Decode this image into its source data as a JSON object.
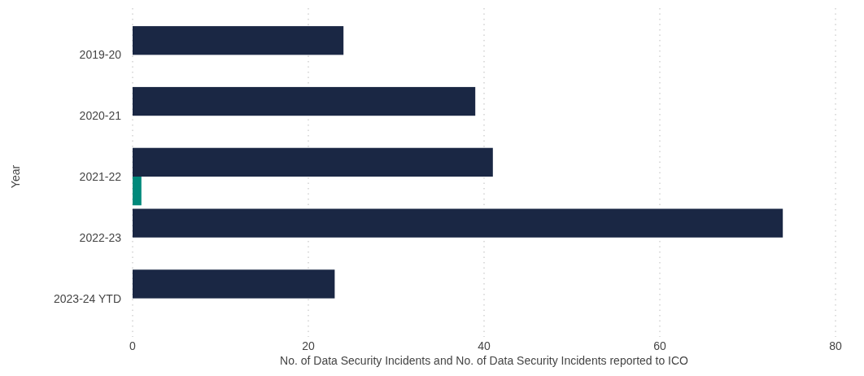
{
  "chart_data": {
    "type": "bar",
    "orientation": "horizontal",
    "xlabel": "No. of Data Security Incidents and No. of Data Security Incidents reported to ICO",
    "ylabel": "Year",
    "categories": [
      "2019-20",
      "2020-21",
      "2021-22",
      "2022-23",
      "2023-24 YTD"
    ],
    "series": [
      {
        "color": "#1a2744",
        "values": [
          24,
          39,
          41,
          74,
          23
        ]
      },
      {
        "color": "#00897b",
        "values": [
          0,
          0,
          1,
          0,
          0
        ]
      }
    ],
    "xlim": [
      0,
      80
    ],
    "xticks": [
      0,
      20,
      40,
      60,
      80
    ],
    "grid": "x"
  }
}
